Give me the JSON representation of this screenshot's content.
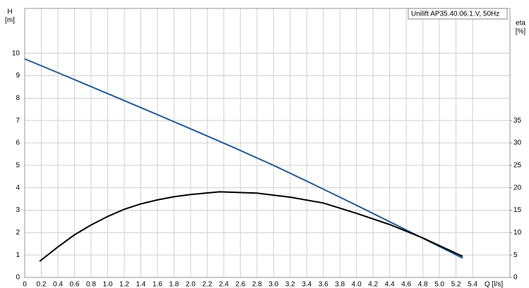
{
  "chart_data": {
    "type": "line",
    "legend_label": "Unilift AP35.40.06.1.V, 50Hz",
    "y_label": "H",
    "y_unit": "[m]",
    "y2_label": "eta",
    "y2_unit": "[%]",
    "x_label": "Q [l/s]",
    "xlim": [
      0,
      5.85
    ],
    "ylim": [
      0,
      12
    ],
    "y2lim": [
      0,
      60
    ],
    "grid": true,
    "xticks": [
      0,
      0.2,
      0.4,
      0.6,
      0.8,
      {
        "value": 1,
        "label": "1.0"
      },
      1.2,
      1.4,
      1.6,
      1.8,
      {
        "value": 2,
        "label": "2.0"
      },
      2.2,
      2.4,
      2.6,
      2.8,
      {
        "value": 3,
        "label": "3.0"
      },
      3.2,
      3.4,
      3.6,
      3.8,
      {
        "value": 4,
        "label": "4.0"
      },
      4.2,
      4.4,
      4.6,
      4.8,
      {
        "value": 5,
        "label": "5.0"
      },
      5.2,
      5.4
    ],
    "yticks": [
      0,
      1,
      2,
      3,
      4,
      5,
      6,
      7,
      8,
      9,
      10
    ],
    "y2ticks": [
      0,
      5,
      10,
      15,
      20,
      25,
      30,
      35
    ],
    "series": [
      {
        "color": "#1f5a96",
        "x": [
          0,
          0.5,
          1.0,
          1.5,
          2.0,
          2.5,
          3.0,
          3.5,
          4.0,
          4.5,
          5.0,
          5.28
        ],
        "values": [
          9.75,
          8.98,
          8.2,
          7.42,
          6.63,
          5.83,
          5.0,
          4.12,
          3.22,
          2.3,
          1.38,
          0.86
        ]
      },
      {
        "color": "#000000",
        "axis": "y2",
        "x": [
          0.18,
          0.4,
          0.6,
          0.8,
          1.0,
          1.2,
          1.4,
          1.6,
          1.8,
          2.0,
          2.35,
          2.8,
          3.2,
          3.6,
          4.0,
          4.4,
          4.8,
          5.28
        ],
        "values": [
          3.6,
          6.8,
          9.5,
          11.7,
          13.6,
          15.2,
          16.4,
          17.3,
          18.0,
          18.5,
          19.1,
          18.8,
          17.9,
          16.6,
          14.3,
          11.8,
          8.8,
          4.7
        ]
      }
    ]
  }
}
